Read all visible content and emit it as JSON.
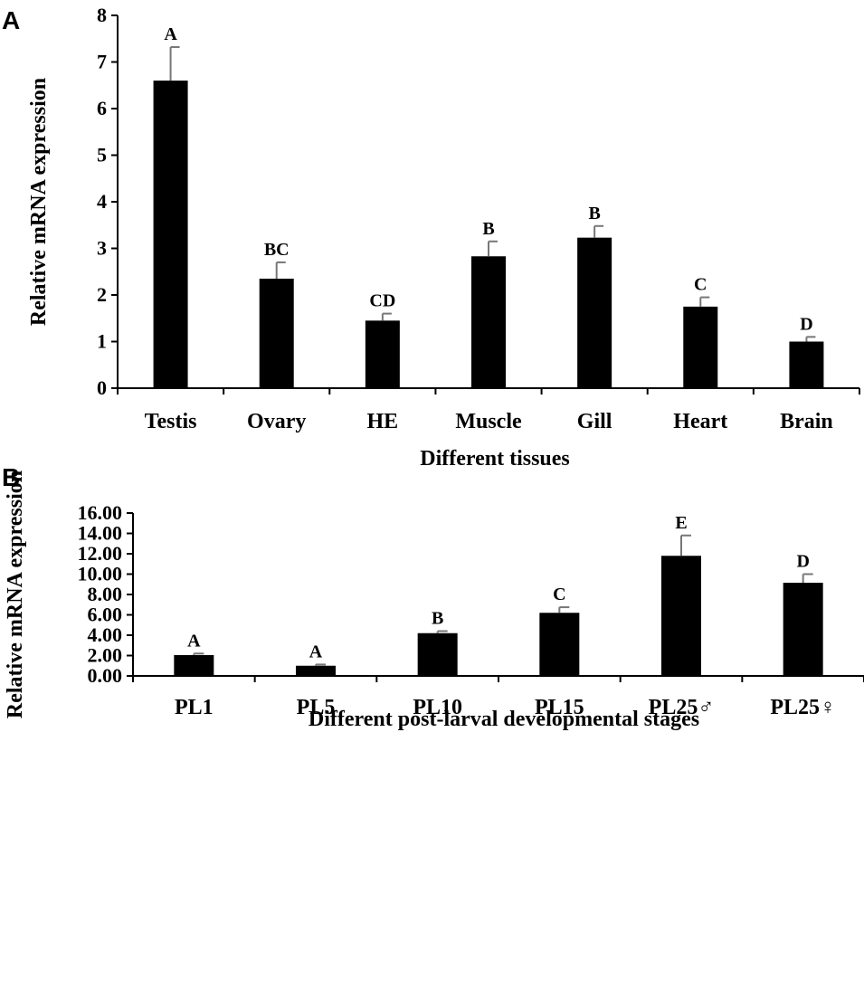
{
  "chart_data": [
    {
      "panel": "A",
      "type": "bar",
      "title": "",
      "xlabel": "Different tissues",
      "ylabel": "Relative mRNA expression",
      "ylim": [
        0,
        8
      ],
      "yticks": [
        0,
        1,
        2,
        3,
        4,
        5,
        6,
        7,
        8
      ],
      "ytick_labels": [
        "0",
        "1",
        "2",
        "3",
        "4",
        "5",
        "6",
        "7",
        "8"
      ],
      "categories": [
        "Testis",
        "Ovary",
        "HE",
        "Muscle",
        "Gill",
        "Heart",
        "Brain"
      ],
      "values": [
        6.6,
        2.35,
        1.45,
        2.83,
        3.23,
        1.75,
        1.0
      ],
      "errors": [
        0.72,
        0.35,
        0.15,
        0.32,
        0.25,
        0.2,
        0.1
      ],
      "significance": [
        "A",
        "BC",
        "CD",
        "B",
        "B",
        "C",
        "D"
      ],
      "bar_color": "#000000",
      "grid": false
    },
    {
      "panel": "B",
      "type": "bar",
      "title": "",
      "xlabel": "Different post-larval developmental stages",
      "ylabel": "Relative mRNA expression",
      "ylim": [
        0,
        16
      ],
      "yticks": [
        0,
        2,
        4,
        6,
        8,
        10,
        12,
        14,
        16
      ],
      "ytick_labels": [
        "0.00",
        "2.00",
        "4.00",
        "6.00",
        "8.00",
        "10.00",
        "12.00",
        "14.00",
        "16.00"
      ],
      "categories": [
        "PL1",
        "PL5",
        "PL10",
        "PL15",
        "PL25♂",
        "PL25♀"
      ],
      "values": [
        2.05,
        1.0,
        4.2,
        6.2,
        11.8,
        9.15
      ],
      "errors": [
        0.15,
        0.12,
        0.2,
        0.55,
        2.0,
        0.85
      ],
      "significance": [
        "A",
        "A",
        "B",
        "C",
        "E",
        "D"
      ],
      "bar_color": "#000000",
      "grid": false
    }
  ]
}
